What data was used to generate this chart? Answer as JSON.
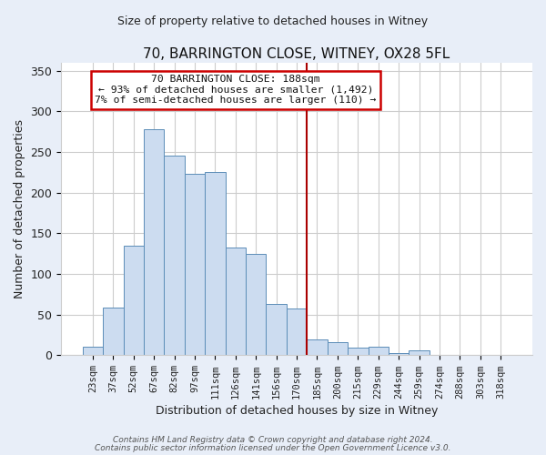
{
  "title": "70, BARRINGTON CLOSE, WITNEY, OX28 5FL",
  "subtitle": "Size of property relative to detached houses in Witney",
  "xlabel": "Distribution of detached houses by size in Witney",
  "ylabel": "Number of detached properties",
  "bar_labels": [
    "23sqm",
    "37sqm",
    "52sqm",
    "67sqm",
    "82sqm",
    "97sqm",
    "111sqm",
    "126sqm",
    "141sqm",
    "156sqm",
    "170sqm",
    "185sqm",
    "200sqm",
    "215sqm",
    "229sqm",
    "244sqm",
    "259sqm",
    "274sqm",
    "288sqm",
    "303sqm",
    "318sqm"
  ],
  "bar_heights": [
    10,
    59,
    135,
    278,
    245,
    223,
    225,
    132,
    125,
    63,
    57,
    19,
    16,
    9,
    10,
    3,
    6,
    0,
    0,
    0,
    0
  ],
  "bar_color": "#ccdcf0",
  "bar_edge_color": "#5b8db8",
  "ylim": [
    0,
    360
  ],
  "yticks": [
    0,
    50,
    100,
    150,
    200,
    250,
    300,
    350
  ],
  "vline_x_index": 11,
  "vline_color": "#aa0000",
  "annotation_title": "70 BARRINGTON CLOSE: 188sqm",
  "annotation_line1": "← 93% of detached houses are smaller (1,492)",
  "annotation_line2": "7% of semi-detached houses are larger (110) →",
  "annotation_box_color": "#cc0000",
  "footer1": "Contains HM Land Registry data © Crown copyright and database right 2024.",
  "footer2": "Contains public sector information licensed under the Open Government Licence v3.0.",
  "bg_color": "#e8eef8",
  "plot_bg_color": "#ffffff"
}
